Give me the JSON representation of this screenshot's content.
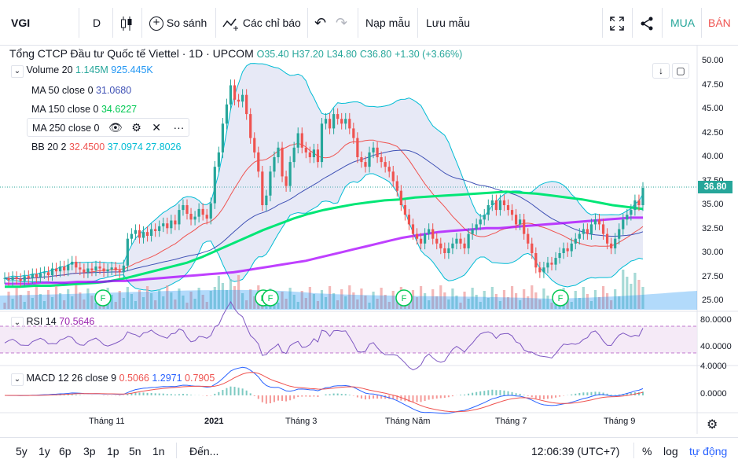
{
  "toolbar": {
    "symbol": "VGI",
    "interval": "D",
    "compare": "So sánh",
    "indicators": "Các chỉ báo",
    "load_template": "Nạp mẫu",
    "save_template": "Lưu mẫu",
    "buy": "MUA",
    "sell": "BÁN"
  },
  "header": {
    "title": "Tổng CTCP Đầu tư Quốc tế Viettel · 1D · UPCOM",
    "open": "O35.40",
    "high": "H37.20",
    "low": "L34.80",
    "close": "C36.80",
    "change": "+1.30 (+3.66%)"
  },
  "legend": {
    "volume": {
      "label": "Volume 20",
      "v1": "1.145M",
      "v2": "925.445K"
    },
    "ma50": {
      "label": "MA 50 close 0",
      "value": "31.0680"
    },
    "ma150": {
      "label": "MA 150 close 0",
      "value": "34.6227"
    },
    "ma250": {
      "label": "MA 250 close 0"
    },
    "bb": {
      "label": "BB 20 2",
      "v1": "32.4500",
      "v2": "37.0974",
      "v3": "27.8026"
    }
  },
  "rsi": {
    "label": "RSI 14",
    "value": "70.5646"
  },
  "macd": {
    "label": "MACD 12 26 close 9",
    "v1": "0.5066",
    "v2": "1.2971",
    "v3": "0.7905"
  },
  "price_axis": [
    "50.00",
    "47.50",
    "45.00",
    "42.50",
    "40.00",
    "37.50",
    "35.00",
    "32.50",
    "30.00",
    "27.50",
    "25.00"
  ],
  "last_price": "36.80",
  "rsi_axis": [
    "80.0000",
    "40.0000"
  ],
  "macd_axis": [
    "4.0000",
    "0.0000"
  ],
  "time_axis": [
    "Tháng 11",
    "2021",
    "Tháng 3",
    "Tháng Năm",
    "Tháng 7",
    "Tháng 9"
  ],
  "events": [
    "F",
    "F",
    "F",
    "F",
    "F"
  ],
  "bottom": {
    "ranges": [
      "5y",
      "1y",
      "6p",
      "3p",
      "1p",
      "5n",
      "1n"
    ],
    "goto": "Đến...",
    "clock": "12:06:39 (UTC+7)",
    "percent": "%",
    "log": "log",
    "auto": "tự động"
  },
  "colors": {
    "up": "#26a69a",
    "down": "#ef5350",
    "ma50": "#3f51b5",
    "ma150": "#00e676",
    "ma250": "#9c27b0",
    "bb": "#00bcd4",
    "buy": "#26a69a",
    "sell": "#ef5350"
  },
  "chart_data": {
    "type": "candlestick",
    "closes": [
      27.4,
      27.2,
      27.5,
      27.3,
      27.1,
      27.6,
      27.4,
      27.8,
      27.5,
      27.9,
      28.0,
      27.7,
      28.4,
      28.1,
      28.6,
      28.2,
      28.8,
      29.1,
      28.5,
      28.3,
      28.0,
      28.4,
      28.2,
      28.6,
      28.4,
      28.1,
      28.3,
      28.5,
      28.2,
      28.0,
      28.7,
      31.5,
      32.0,
      32.4,
      31.6,
      32.2,
      31.8,
      32.5,
      32.3,
      32.8,
      33.1,
      32.6,
      33.4,
      33.0,
      34.5,
      35.0,
      34.1,
      33.5,
      33.8,
      34.6,
      34.0,
      33.6,
      35.2,
      39.0,
      40.5,
      43.5,
      45.5,
      47.5,
      46.0,
      45.8,
      46.5,
      44.5,
      42.0,
      40.5,
      38.5,
      35.0,
      36.0,
      38.5,
      40.0,
      41.0,
      38.0,
      37.0,
      39.5,
      41.0,
      42.5,
      41.0,
      40.5,
      40.0,
      40.8,
      39.5,
      43.5,
      44.0,
      43.0,
      44.5,
      44.0,
      43.5,
      44.0,
      43.0,
      42.0,
      40.0,
      39.5,
      39.0,
      40.5,
      41.0,
      40.0,
      39.5,
      39.0,
      38.5,
      37.5,
      36.5,
      35.0,
      34.0,
      33.0,
      32.0,
      31.5,
      31.0,
      32.0,
      32.5,
      31.5,
      31.0,
      30.5,
      30.0,
      30.5,
      31.0,
      31.5,
      31.0,
      30.5,
      32.0,
      32.5,
      33.0,
      33.5,
      34.0,
      35.0,
      35.5,
      34.5,
      35.5,
      35.0,
      34.5,
      34.0,
      33.0,
      33.5,
      32.0,
      31.0,
      30.0,
      28.5,
      28.0,
      28.5,
      29.0,
      28.8,
      29.5,
      30.0,
      30.5,
      30.2,
      31.0,
      31.5,
      32.0,
      32.5,
      32.0,
      33.0,
      33.5,
      33.0,
      32.0,
      31.0,
      30.5,
      31.5,
      32.5,
      33.5,
      34.0,
      34.5,
      35.5,
      35.0,
      36.8
    ],
    "ma250": [
      26.8,
      26.8,
      26.8,
      26.9,
      26.9,
      26.9,
      27.0,
      27.0,
      27.0,
      27.1,
      27.1,
      27.2,
      27.3,
      27.4,
      27.5,
      27.6,
      27.7,
      27.8,
      27.9,
      28.0,
      28.2,
      28.4,
      28.6,
      28.8,
      29.0,
      29.2,
      29.5,
      29.8,
      30.1,
      30.4,
      30.7,
      31.0,
      31.3,
      31.6,
      31.8,
      32.0,
      32.2,
      32.3,
      32.4,
      32.5,
      32.6,
      32.6,
      32.7,
      32.8,
      32.9,
      33.0,
      33.1,
      33.2,
      33.3,
      33.4,
      33.5,
      33.6,
      33.7,
      33.7
    ],
    "ma150": [
      26.5,
      26.5,
      26.6,
      26.6,
      26.7,
      26.8,
      26.9,
      27.1,
      27.4,
      27.8,
      28.2,
      28.6,
      29.0,
      29.6,
      30.3,
      31.0,
      31.7,
      32.4,
      33.0,
      33.6,
      34.1,
      34.5,
      34.8,
      35.1,
      35.3,
      35.5,
      35.6,
      35.8,
      35.9,
      36.0,
      36.1,
      36.2,
      36.3,
      36.4,
      36.3,
      36.2,
      36.0,
      35.8,
      35.6,
      35.3,
      35.0,
      34.8,
      34.6
    ]
  }
}
